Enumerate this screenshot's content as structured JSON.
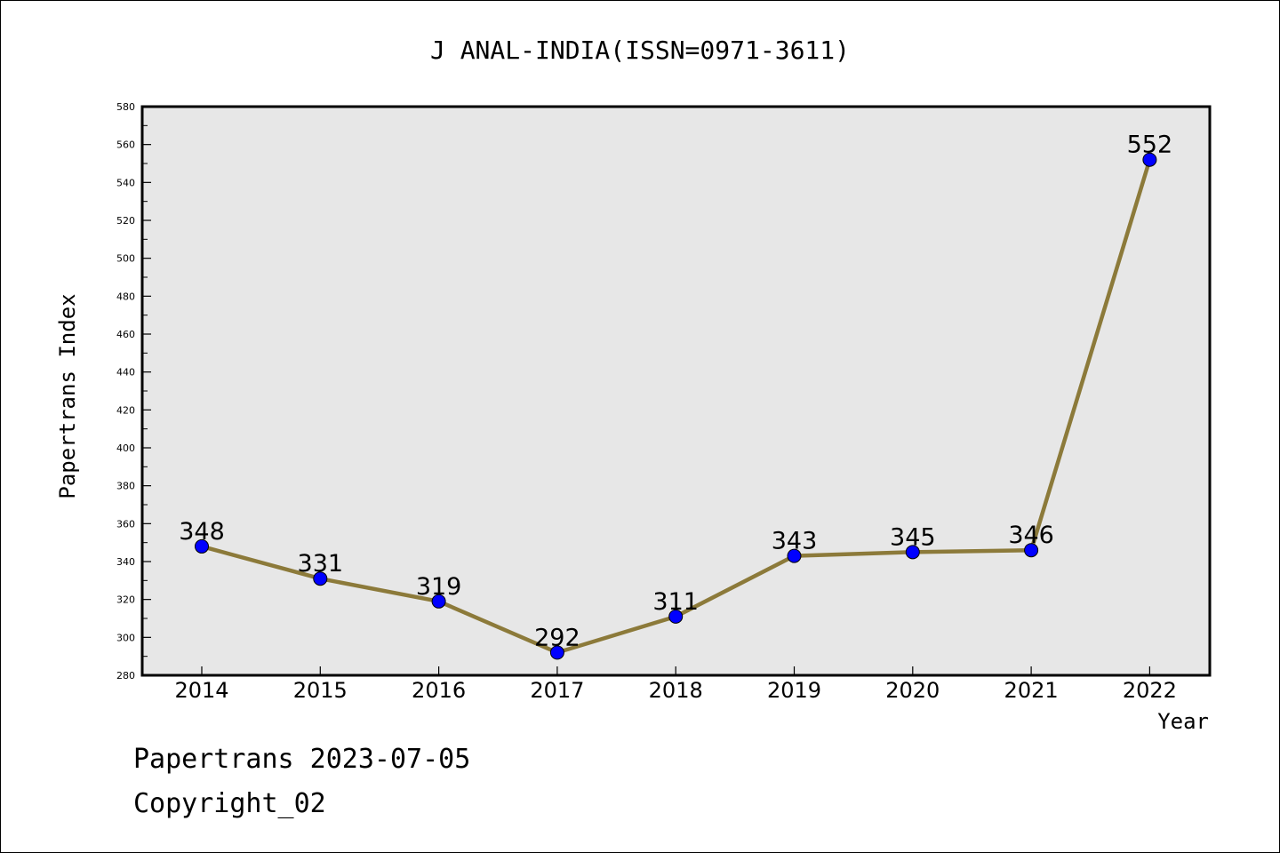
{
  "chart_data": {
    "type": "line",
    "title": "J ANAL-INDIA(ISSN=0971-3611)",
    "xlabel": "Year",
    "ylabel": "Papertrans Index",
    "categories": [
      "2014",
      "2015",
      "2016",
      "2017",
      "2018",
      "2019",
      "2020",
      "2021",
      "2022"
    ],
    "series": [
      {
        "name": "Papertrans Index",
        "values": [
          348,
          331,
          319,
          292,
          311,
          343,
          345,
          346,
          552
        ]
      }
    ],
    "ylim": [
      280,
      580
    ],
    "yticks": [
      280,
      300,
      320,
      340,
      360,
      380,
      400,
      420,
      440,
      460,
      480,
      500,
      520,
      540,
      560,
      580
    ],
    "grid": false,
    "data_labels": true
  },
  "footer": {
    "line1": "Papertrans 2023-07-05",
    "line2": "Copyright_02"
  },
  "colors": {
    "plot_bg": "#e7e7e7",
    "line": "#8c7a3a",
    "marker": "#0000ff",
    "axis": "#000000"
  }
}
